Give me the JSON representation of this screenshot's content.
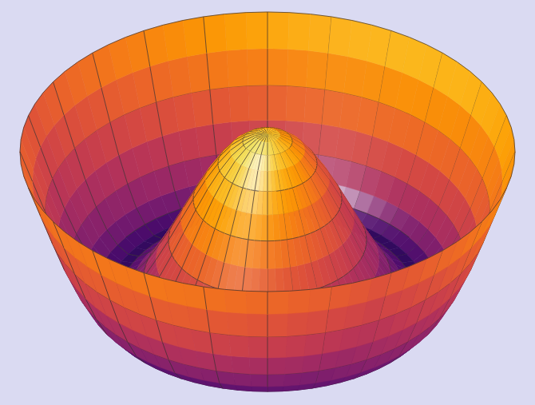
{
  "chart_data": {
    "type": "surface",
    "x": [
      0,
      0.05,
      0.1,
      0.15,
      0.2,
      0.25,
      0.3,
      0.35,
      0.4,
      0.45,
      0.5,
      0.55,
      0.6,
      0.65,
      0.7,
      0.75,
      0.8,
      0.85,
      0.9,
      0.95,
      1
    ],
    "values": [
      0.12,
      0.11,
      0.07,
      0.01,
      -0.08,
      -0.19,
      -0.32,
      -0.46,
      -0.6,
      -0.73,
      -0.85,
      -0.94,
      -0.99,
      -1.0,
      -0.96,
      -0.88,
      -0.75,
      -0.59,
      -0.4,
      -0.2,
      0
    ],
    "grid": true,
    "tick_labels": false
  }
}
